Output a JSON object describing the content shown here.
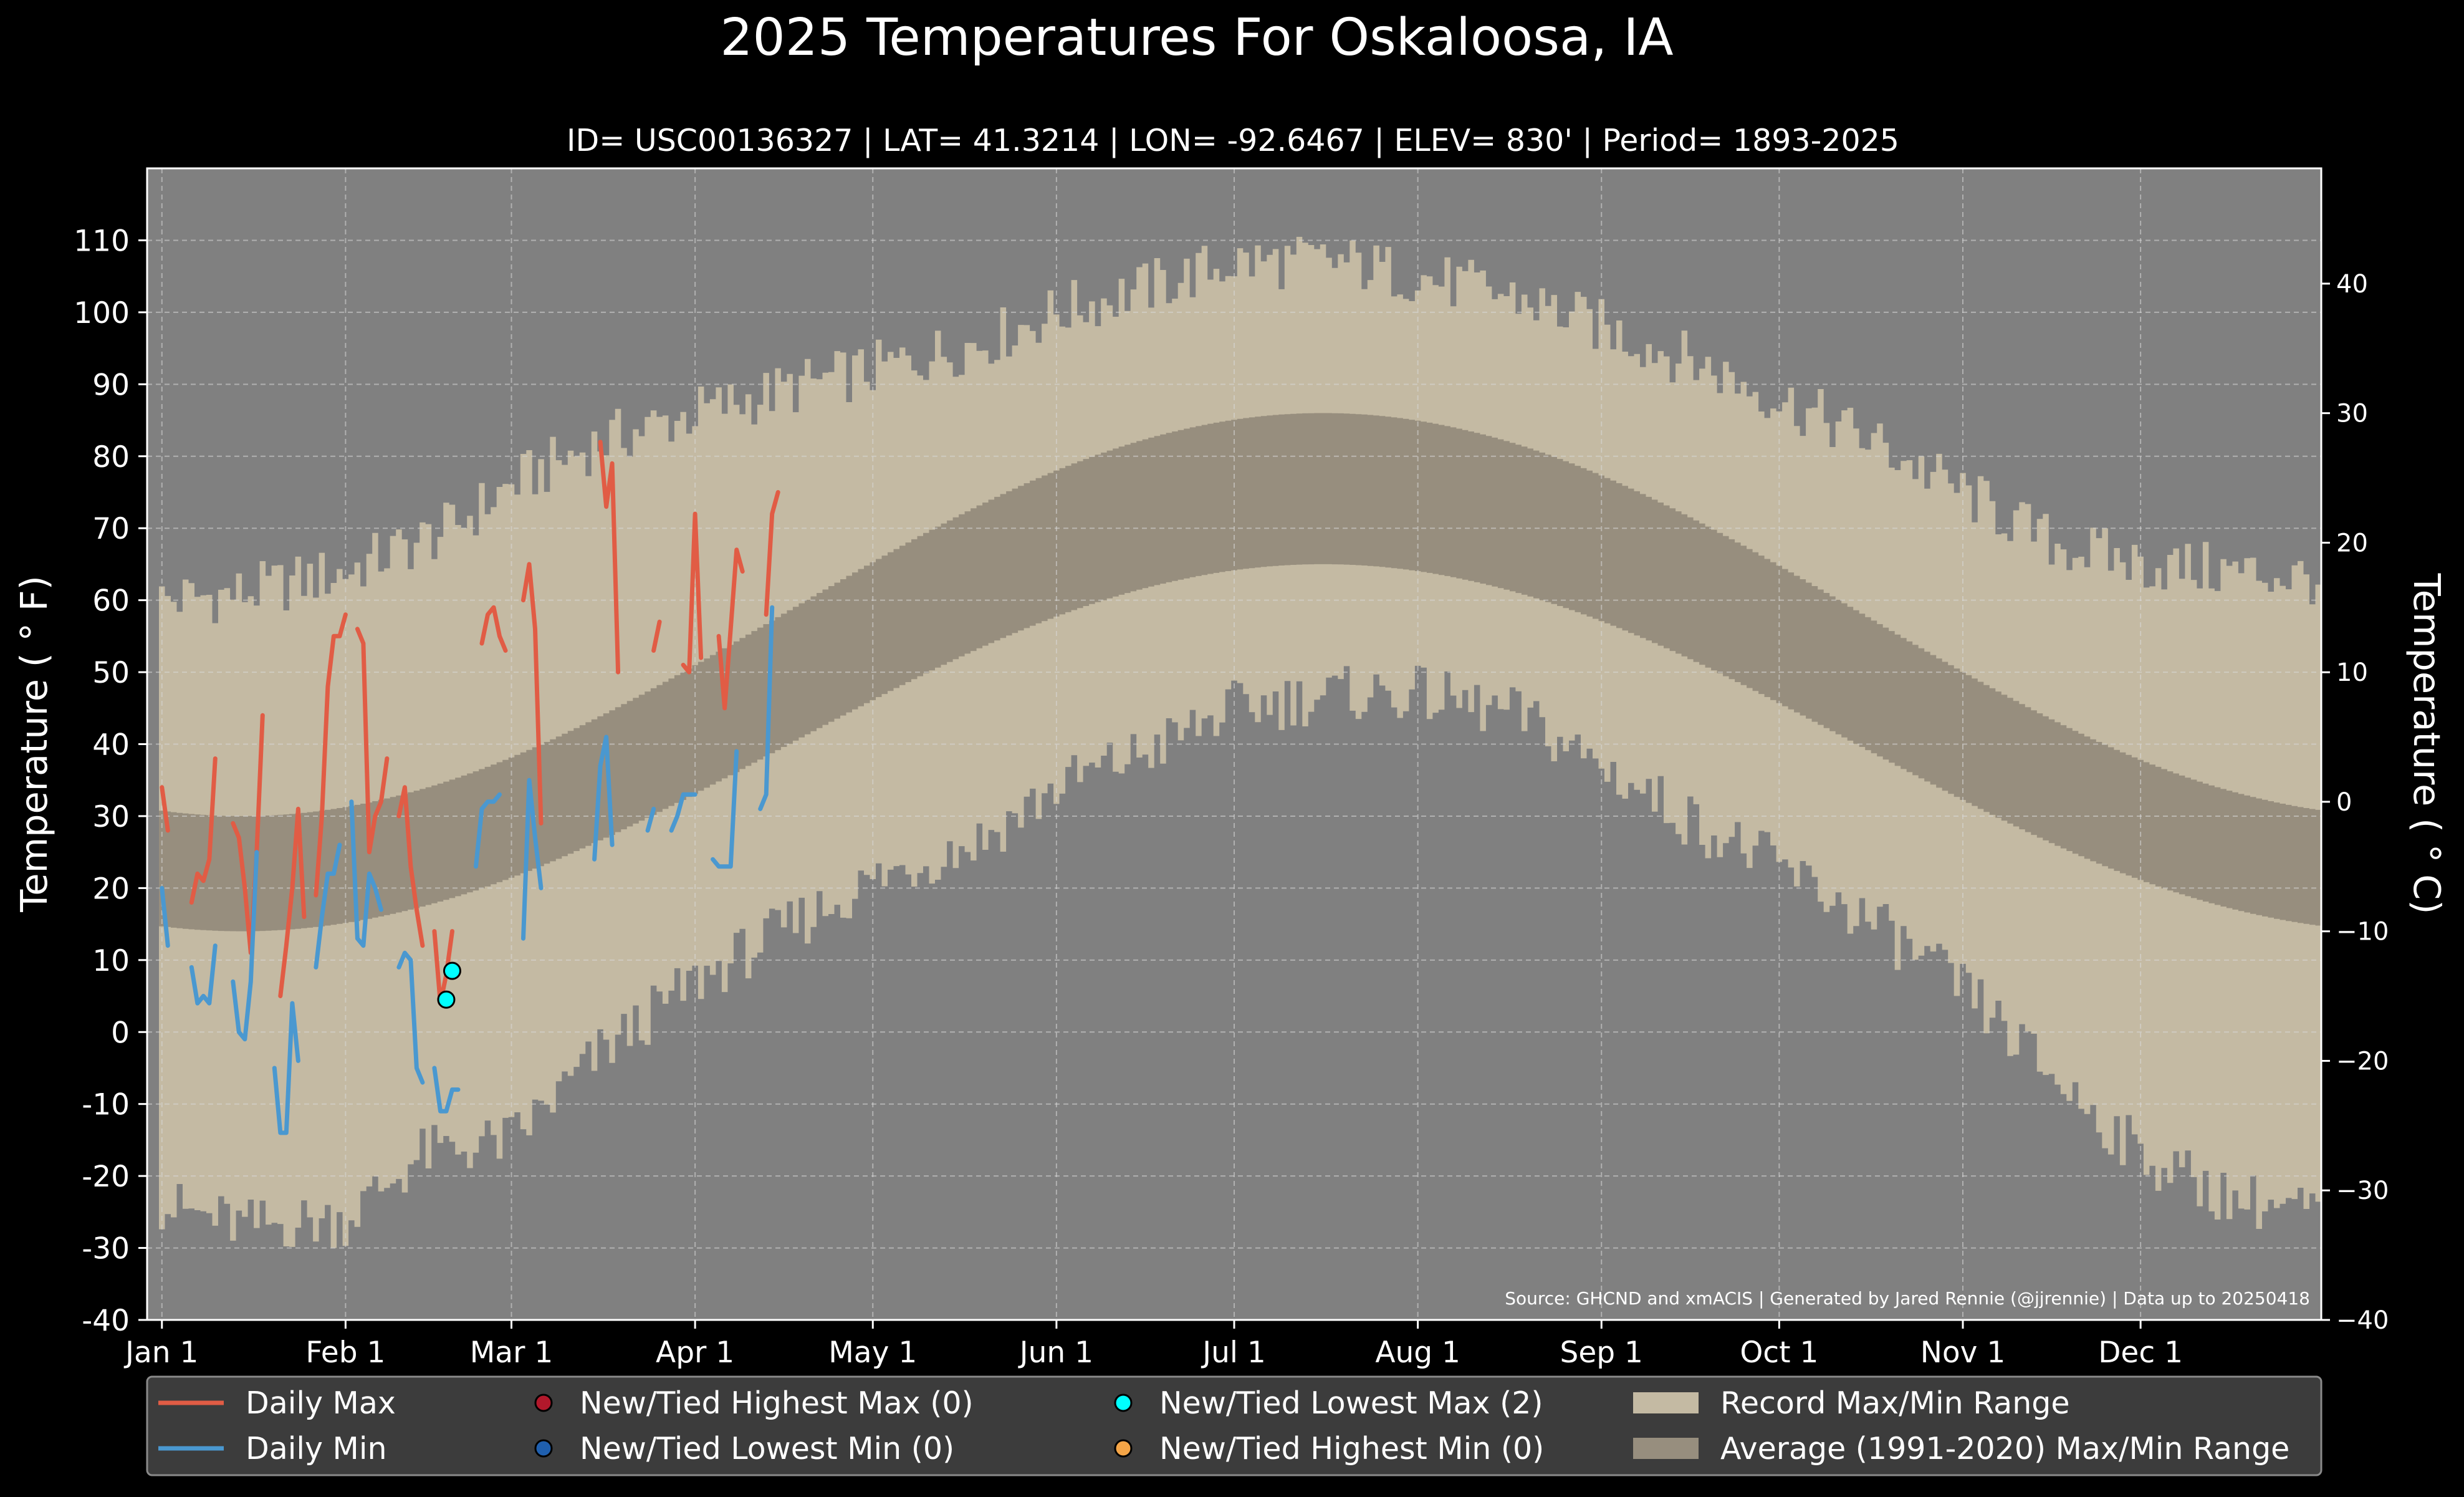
{
  "chart_data": {
    "type": "line",
    "title": "2025 Temperatures For Oskaloosa, IA",
    "subtitle": "ID= USC00136327 | LAT= 41.3214 | LON= -92.6467 | ELEV= 830' | Period= 1893-2025",
    "ylabel": "Temperature ( ° F)",
    "ylabel_right": "Temperature ( ° C)",
    "ylim": [
      -40,
      120
    ],
    "yticks": [
      -40,
      -30,
      -20,
      -10,
      0,
      10,
      20,
      30,
      40,
      50,
      60,
      70,
      80,
      90,
      100,
      110
    ],
    "ylim_right": [
      -40,
      48.9
    ],
    "yticks_right": [
      -40,
      -30,
      -20,
      -10,
      0,
      10,
      20,
      30,
      40
    ],
    "xlim_days": [
      -1.5,
      365.5
    ],
    "xticks": [
      {
        "label": "Jan 1",
        "day": 1
      },
      {
        "label": "Feb 1",
        "day": 32
      },
      {
        "label": "Mar 1",
        "day": 60
      },
      {
        "label": "Apr 1",
        "day": 91
      },
      {
        "label": "May 1",
        "day": 121
      },
      {
        "label": "Jun 1",
        "day": 152
      },
      {
        "label": "Jul 1",
        "day": 182
      },
      {
        "label": "Aug 1",
        "day": 213
      },
      {
        "label": "Sep 1",
        "day": 244
      },
      {
        "label": "Oct 1",
        "day": 274
      },
      {
        "label": "Nov 1",
        "day": 305
      },
      {
        "label": "Dec 1",
        "day": 335
      }
    ],
    "grid": true,
    "legend_placement": "below plot, 4 columns",
    "source_note": "Source: GHCND and xmACIS | Generated by Jared Rennie (@jjrennie) | Data up to 20250418",
    "record_max_curve": [
      [
        1,
        60
      ],
      [
        15,
        61
      ],
      [
        32,
        64
      ],
      [
        50,
        70
      ],
      [
        60,
        76
      ],
      [
        75,
        82
      ],
      [
        91,
        86
      ],
      [
        110,
        90
      ],
      [
        121,
        92
      ],
      [
        140,
        96
      ],
      [
        152,
        100
      ],
      [
        170,
        104
      ],
      [
        182,
        107
      ],
      [
        200,
        107
      ],
      [
        213,
        105
      ],
      [
        230,
        102
      ],
      [
        244,
        98
      ],
      [
        260,
        93
      ],
      [
        274,
        88
      ],
      [
        290,
        82
      ],
      [
        305,
        75
      ],
      [
        320,
        68
      ],
      [
        335,
        65
      ],
      [
        350,
        64
      ],
      [
        365,
        63
      ]
    ],
    "record_min_curve": [
      [
        1,
        -24
      ],
      [
        15,
        -27
      ],
      [
        32,
        -26
      ],
      [
        45,
        -17
      ],
      [
        60,
        -15
      ],
      [
        75,
        -3
      ],
      [
        91,
        7
      ],
      [
        110,
        16
      ],
      [
        121,
        21
      ],
      [
        140,
        27
      ],
      [
        152,
        34
      ],
      [
        170,
        40
      ],
      [
        182,
        45
      ],
      [
        200,
        47
      ],
      [
        213,
        47
      ],
      [
        230,
        44
      ],
      [
        244,
        37
      ],
      [
        260,
        29
      ],
      [
        274,
        23
      ],
      [
        290,
        15
      ],
      [
        305,
        6
      ],
      [
        320,
        -6
      ],
      [
        335,
        -17
      ],
      [
        350,
        -23
      ],
      [
        365,
        -25
      ]
    ],
    "average_band": {
      "name": "Average (1991-2020) Max/Min Range",
      "max_mean": 58,
      "max_amp": 28,
      "min_mean": 39.5,
      "min_amp": 25.5,
      "peak_day": 197
    },
    "series": [
      {
        "name": "Daily Max",
        "color": "#e15c45",
        "segments": [
          [
            [
              1,
              34
            ],
            [
              2,
              28
            ]
          ],
          [
            [
              6,
              18
            ],
            [
              7,
              22
            ],
            [
              8,
              21
            ],
            [
              9,
              24
            ],
            [
              10,
              38
            ]
          ],
          [
            [
              13,
              29
            ],
            [
              14,
              27
            ],
            [
              15,
              20
            ],
            [
              16,
              11
            ],
            [
              17,
              25
            ],
            [
              18,
              44
            ]
          ],
          [
            [
              21,
              5
            ],
            [
              22,
              12
            ],
            [
              23,
              20
            ],
            [
              24,
              31
            ],
            [
              25,
              16
            ]
          ],
          [
            [
              27,
              19
            ],
            [
              28,
              30
            ],
            [
              29,
              48
            ],
            [
              30,
              55
            ],
            [
              31,
              55
            ],
            [
              32,
              58
            ]
          ],
          [
            [
              34,
              56
            ],
            [
              35,
              54
            ],
            [
              36,
              25
            ],
            [
              37,
              30
            ],
            [
              38,
              32
            ],
            [
              39,
              38
            ]
          ],
          [
            [
              41,
              30
            ],
            [
              42,
              34
            ],
            [
              43,
              23
            ],
            [
              44,
              17
            ],
            [
              45,
              12
            ]
          ],
          [
            [
              47,
              14
            ],
            [
              48,
              4
            ],
            [
              49,
              8
            ],
            [
              50,
              14
            ]
          ],
          [
            [
              55,
              54
            ],
            [
              56,
              58
            ],
            [
              57,
              59
            ],
            [
              58,
              55
            ],
            [
              59,
              53
            ]
          ],
          [
            [
              62,
              60
            ],
            [
              63,
              65
            ],
            [
              64,
              56
            ],
            [
              65,
              29
            ]
          ],
          [
            [
              75,
              82
            ],
            [
              76,
              73
            ],
            [
              77,
              79
            ],
            [
              78,
              50
            ]
          ],
          [
            [
              84,
              53
            ],
            [
              85,
              57
            ]
          ],
          [
            [
              89,
              51
            ],
            [
              90,
              50
            ],
            [
              91,
              72
            ],
            [
              92,
              52
            ]
          ],
          [
            [
              95,
              55
            ],
            [
              96,
              45
            ],
            [
              97,
              56
            ],
            [
              98,
              67
            ],
            [
              99,
              64
            ]
          ],
          [
            [
              103,
              58
            ],
            [
              104,
              72
            ],
            [
              105,
              75
            ]
          ]
        ]
      },
      {
        "name": "Daily Min",
        "color": "#4a98d0",
        "segments": [
          [
            [
              1,
              20
            ],
            [
              2,
              12
            ]
          ],
          [
            [
              6,
              9
            ],
            [
              7,
              4
            ],
            [
              8,
              5
            ],
            [
              9,
              4
            ],
            [
              10,
              12
            ]
          ],
          [
            [
              13,
              7
            ],
            [
              14,
              0
            ],
            [
              15,
              -1
            ],
            [
              16,
              7
            ],
            [
              17,
              25
            ]
          ],
          [
            [
              20,
              -5
            ],
            [
              21,
              -14
            ],
            [
              22,
              -14
            ],
            [
              23,
              4
            ],
            [
              24,
              -4
            ]
          ],
          [
            [
              27,
              9
            ],
            [
              28,
              16
            ],
            [
              29,
              22
            ],
            [
              30,
              22
            ],
            [
              31,
              26
            ]
          ],
          [
            [
              33,
              32
            ],
            [
              34,
              13
            ],
            [
              35,
              12
            ],
            [
              36,
              22
            ],
            [
              37,
              20
            ],
            [
              38,
              17
            ]
          ],
          [
            [
              41,
              9
            ],
            [
              42,
              11
            ],
            [
              43,
              10
            ],
            [
              44,
              -5
            ],
            [
              45,
              -7
            ]
          ],
          [
            [
              47,
              -5
            ],
            [
              48,
              -11
            ],
            [
              49,
              -11
            ],
            [
              50,
              -8
            ],
            [
              51,
              -8
            ]
          ],
          [
            [
              54,
              23
            ],
            [
              55,
              31
            ],
            [
              56,
              32
            ],
            [
              57,
              32
            ],
            [
              58,
              33
            ]
          ],
          [
            [
              62,
              13
            ],
            [
              63,
              35
            ],
            [
              64,
              27
            ],
            [
              65,
              20
            ]
          ],
          [
            [
              74,
              24
            ],
            [
              75,
              37
            ],
            [
              76,
              41
            ],
            [
              77,
              26
            ]
          ],
          [
            [
              83,
              28
            ],
            [
              84,
              31
            ]
          ],
          [
            [
              87,
              28
            ],
            [
              88,
              30
            ],
            [
              89,
              33
            ],
            [
              90,
              33
            ],
            [
              91,
              33
            ]
          ],
          [
            [
              94,
              24
            ],
            [
              95,
              23
            ],
            [
              96,
              23
            ],
            [
              97,
              23
            ],
            [
              98,
              39
            ]
          ],
          [
            [
              102,
              31
            ],
            [
              103,
              33
            ],
            [
              104,
              59
            ]
          ]
        ]
      }
    ],
    "markers": [
      {
        "name": "New/Tied Lowest Max",
        "color": "#00ffff",
        "points": [
          [
            49,
            4.5
          ],
          [
            50,
            8.5
          ]
        ]
      }
    ],
    "legend": [
      {
        "label": "Daily Max",
        "kind": "line",
        "color": "#e15c45"
      },
      {
        "label": "Daily Min",
        "kind": "line",
        "color": "#4a98d0"
      },
      {
        "label": "New/Tied Highest Max (0)",
        "kind": "dot",
        "color": "#b2182b"
      },
      {
        "label": "New/Tied Lowest Min (0)",
        "kind": "dot",
        "color": "#1f5fae"
      },
      {
        "label": "New/Tied Lowest Max (2)",
        "kind": "dot",
        "color": "#00ffff"
      },
      {
        "label": "New/Tied Highest Min (0)",
        "kind": "dot",
        "color": "#f4a547"
      },
      {
        "label": "Record Max/Min Range",
        "kind": "patch",
        "color": "#c4baa3"
      },
      {
        "label": "Average (1991-2020) Max/Min Range",
        "kind": "patch",
        "color": "#978e7e"
      }
    ],
    "colors": {
      "background": "#000000",
      "plot_background": "#808080",
      "record_range": "#c4baa3",
      "average_range": "#978e7e",
      "legend_background": "#3c3c3c"
    }
  }
}
